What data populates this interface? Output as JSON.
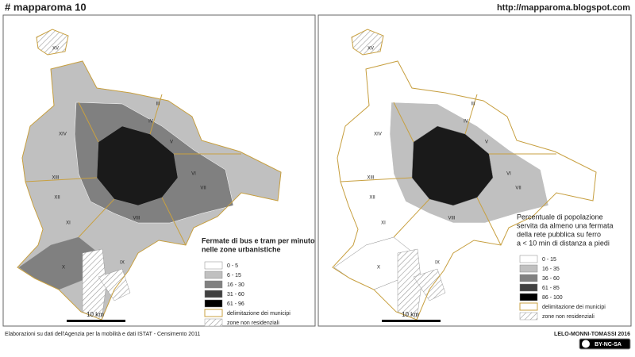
{
  "header": {
    "title": "# mapparoma 10",
    "url": "http://mapparoma.blogspot.com"
  },
  "maps": [
    {
      "legend_title": [
        "Fermate di bus e tram per minuto",
        "nelle zone urbanistiche"
      ],
      "classes": [
        {
          "label": "0 - 5",
          "color": "#ffffff"
        },
        {
          "label": "6 - 15",
          "color": "#c0c0c0"
        },
        {
          "label": "16 - 30",
          "color": "#808080"
        },
        {
          "label": "31 - 60",
          "color": "#404040"
        },
        {
          "label": "61 - 96",
          "color": "#000000"
        }
      ],
      "boundary_label": "delimitazione dei municipi",
      "nonres_label": "zone non residenziali",
      "scale": "10 km",
      "municipi": [
        "XV",
        "XIV",
        "XIII",
        "XII",
        "XI",
        "X",
        "IX",
        "VIII",
        "VII",
        "VI",
        "V",
        "IV",
        "III"
      ]
    },
    {
      "legend_title": [
        "Percentuale di popolazione",
        "servita da almeno una fermata",
        "della rete pubblica su ferro",
        "a < 10 min di distanza a piedi"
      ],
      "classes": [
        {
          "label": "0 - 15",
          "color": "#ffffff"
        },
        {
          "label": "16 - 35",
          "color": "#c0c0c0"
        },
        {
          "label": "36 - 60",
          "color": "#808080"
        },
        {
          "label": "61 - 85",
          "color": "#404040"
        },
        {
          "label": "86 - 100",
          "color": "#000000"
        }
      ],
      "boundary_label": "delimitazione dei municipi",
      "nonres_label": "zone non residenziali",
      "scale": "10 km",
      "municipi": [
        "XV",
        "XIV",
        "XIII",
        "XII",
        "XI",
        "X",
        "IX",
        "VIII",
        "VII",
        "VI",
        "V",
        "IV",
        "III"
      ]
    }
  ],
  "footer": {
    "source": "Elaborazioni su dati dell'Agenzia per la mobilità e dati ISTAT - Censimento 2011",
    "credit": "LELO-MONNI-TOMASSI 2016",
    "license": "BY-NC-SA"
  }
}
